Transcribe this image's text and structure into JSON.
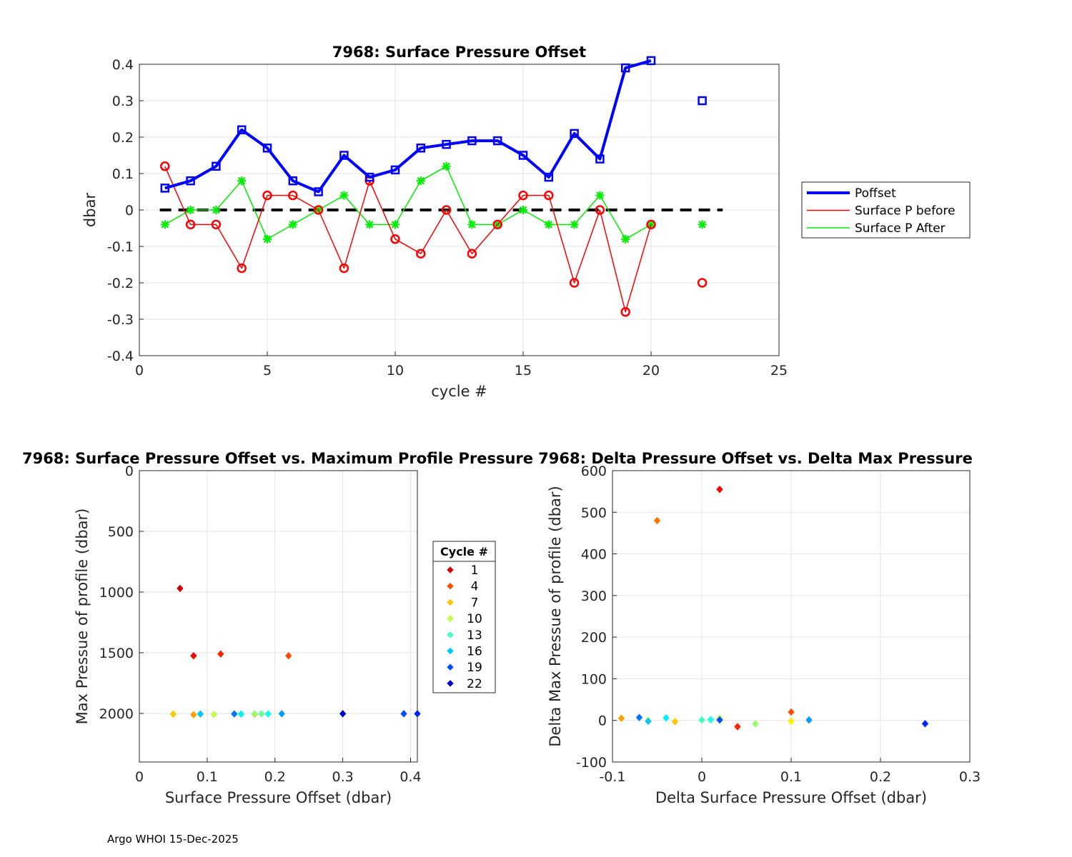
{
  "footer": "Argo WHOI 15-Dec-2025",
  "chart_data": [
    {
      "type": "line",
      "title": "7968: Surface Pressure Offset",
      "xlabel": "cycle #",
      "ylabel": "dbar",
      "xlim": [
        0,
        25
      ],
      "ylim": [
        -0.4,
        0.4
      ],
      "xticks": [
        0,
        5,
        10,
        15,
        20,
        25
      ],
      "yticks": [
        -0.4,
        -0.3,
        -0.2,
        -0.1,
        0,
        0.1,
        0.2,
        0.3,
        0.4
      ],
      "ytick_labels": [
        "-0.4",
        "-0.3",
        "-0.2",
        "-0.1",
        "0",
        "0.1",
        "0.2",
        "0.3",
        "0.4"
      ],
      "grid": true,
      "legend_position": "outside-right",
      "series": [
        {
          "name": "Poffset",
          "color": "#0000ff",
          "marker": "square",
          "x": [
            1,
            2,
            3,
            4,
            5,
            6,
            7,
            8,
            9,
            10,
            11,
            12,
            13,
            14,
            15,
            16,
            17,
            18,
            19,
            20,
            null,
            22
          ],
          "values": [
            0.06,
            0.08,
            0.12,
            0.22,
            0.17,
            0.08,
            0.05,
            0.15,
            0.09,
            0.11,
            0.17,
            0.18,
            0.19,
            0.19,
            0.15,
            0.09,
            0.21,
            0.14,
            0.39,
            0.41,
            null,
            0.3
          ]
        },
        {
          "name": "Surface P before",
          "color": "#ff0000",
          "marker": "circle",
          "x": [
            1,
            2,
            3,
            4,
            5,
            6,
            7,
            8,
            9,
            10,
            11,
            12,
            13,
            14,
            15,
            16,
            17,
            18,
            19,
            20,
            null,
            22
          ],
          "values": [
            0.12,
            -0.04,
            -0.04,
            -0.16,
            0.04,
            0.04,
            0,
            -0.16,
            0.08,
            -0.08,
            -0.12,
            0,
            -0.12,
            -0.04,
            0.04,
            0.04,
            -0.2,
            0,
            -0.28,
            -0.04,
            null,
            -0.2
          ]
        },
        {
          "name": "Surface P After",
          "color": "#00ee00",
          "marker": "asterisk",
          "x": [
            1,
            2,
            3,
            4,
            5,
            6,
            7,
            8,
            9,
            10,
            11,
            12,
            13,
            14,
            15,
            16,
            17,
            18,
            19,
            20,
            null,
            22
          ],
          "values": [
            -0.04,
            0,
            0,
            0.08,
            -0.08,
            -0.04,
            0,
            0.04,
            -0.04,
            -0.04,
            0.08,
            0.12,
            -0.04,
            -0.04,
            0,
            -0.04,
            -0.04,
            0.04,
            -0.08,
            -0.04,
            null,
            -0.04
          ]
        }
      ],
      "reference_line": {
        "y": 0,
        "x_range": [
          0.8,
          22.8
        ],
        "style": "dashed",
        "color": "#000000"
      }
    },
    {
      "type": "scatter",
      "title": "7968: Surface Pressure Offset vs. Maximum Profile Pressure",
      "xlabel": "Surface Pressure Offset (dbar)",
      "ylabel": "Max Pressue of profile (dbar)",
      "xlim": [
        0,
        0.41
      ],
      "ylim": [
        0,
        2400
      ],
      "y_reversed": true,
      "xticks": [
        0,
        0.1,
        0.2,
        0.3,
        0.4
      ],
      "xtick_labels": [
        "0",
        "0.1",
        "0.2",
        "0.3",
        "0.4"
      ],
      "yticks": [
        0,
        500,
        1000,
        1500,
        2000
      ],
      "grid": true,
      "points": [
        {
          "cycle": 1,
          "x": 0.06,
          "y": 970
        },
        {
          "cycle": 2,
          "x": 0.08,
          "y": 1525
        },
        {
          "cycle": 3,
          "x": 0.12,
          "y": 1510
        },
        {
          "cycle": 4,
          "x": 0.22,
          "y": 1525
        },
        {
          "cycle": 5,
          "x": 0.17,
          "y": 2005
        },
        {
          "cycle": 6,
          "x": 0.08,
          "y": 2010
        },
        {
          "cycle": 7,
          "x": 0.05,
          "y": 2005
        },
        {
          "cycle": 8,
          "x": 0.15,
          "y": 2005
        },
        {
          "cycle": 9,
          "x": 0.09,
          "y": 2005
        },
        {
          "cycle": 10,
          "x": 0.11,
          "y": 2008
        },
        {
          "cycle": 11,
          "x": 0.17,
          "y": 2002
        },
        {
          "cycle": 12,
          "x": 0.18,
          "y": 2003
        },
        {
          "cycle": 13,
          "x": 0.19,
          "y": 2003
        },
        {
          "cycle": 14,
          "x": 0.19,
          "y": 2004
        },
        {
          "cycle": 15,
          "x": 0.15,
          "y": 2005
        },
        {
          "cycle": 16,
          "x": 0.09,
          "y": 2004
        },
        {
          "cycle": 17,
          "x": 0.21,
          "y": 2002
        },
        {
          "cycle": 18,
          "x": 0.14,
          "y": 2004
        },
        {
          "cycle": 19,
          "x": 0.39,
          "y": 2002
        },
        {
          "cycle": 20,
          "x": 0.41,
          "y": 2002
        },
        {
          "cycle": 22,
          "x": 0.3,
          "y": 2002
        }
      ],
      "legend": {
        "title": "Cycle #",
        "entries": [
          1,
          4,
          7,
          10,
          13,
          16,
          19,
          22
        ],
        "position": "right"
      }
    },
    {
      "type": "scatter",
      "title": "7968: Delta Pressure Offset vs. Delta Max Pressure",
      "xlabel": "Delta Surface Pressure Offset (dbar)",
      "ylabel": "Delta Max Pressue of profile (dbar)",
      "xlim": [
        -0.1,
        0.3
      ],
      "ylim": [
        -100,
        600
      ],
      "xticks": [
        -0.1,
        0,
        0.1,
        0.2,
        0.3
      ],
      "xtick_labels": [
        "-0.1",
        "0",
        "0.1",
        "0.2",
        "0.3"
      ],
      "yticks": [
        -100,
        0,
        100,
        200,
        300,
        400,
        500,
        600
      ],
      "grid": true,
      "points": [
        {
          "cycle": 2,
          "x": 0.02,
          "y": 555
        },
        {
          "cycle": 3,
          "x": 0.04,
          "y": -15
        },
        {
          "cycle": 4,
          "x": 0.1,
          "y": 20
        },
        {
          "cycle": 5,
          "x": -0.05,
          "y": 480
        },
        {
          "cycle": 6,
          "x": -0.09,
          "y": 5
        },
        {
          "cycle": 7,
          "x": -0.03,
          "y": -3
        },
        {
          "cycle": 8,
          "x": 0.1,
          "y": -2
        },
        {
          "cycle": 9,
          "x": -0.06,
          "y": 0
        },
        {
          "cycle": 10,
          "x": 0.02,
          "y": 5
        },
        {
          "cycle": 11,
          "x": 0.06,
          "y": -8
        },
        {
          "cycle": 12,
          "x": 0.01,
          "y": 1
        },
        {
          "cycle": 13,
          "x": 0.0,
          "y": 1
        },
        {
          "cycle": 14,
          "x": 0.01,
          "y": 2
        },
        {
          "cycle": 15,
          "x": -0.04,
          "y": 6
        },
        {
          "cycle": 16,
          "x": -0.06,
          "y": -2
        },
        {
          "cycle": 17,
          "x": 0.12,
          "y": 1
        },
        {
          "cycle": 18,
          "x": -0.07,
          "y": 7
        },
        {
          "cycle": 19,
          "x": 0.02,
          "y": 1
        },
        {
          "cycle": 20,
          "x": 0.25,
          "y": -8
        }
      ]
    }
  ]
}
